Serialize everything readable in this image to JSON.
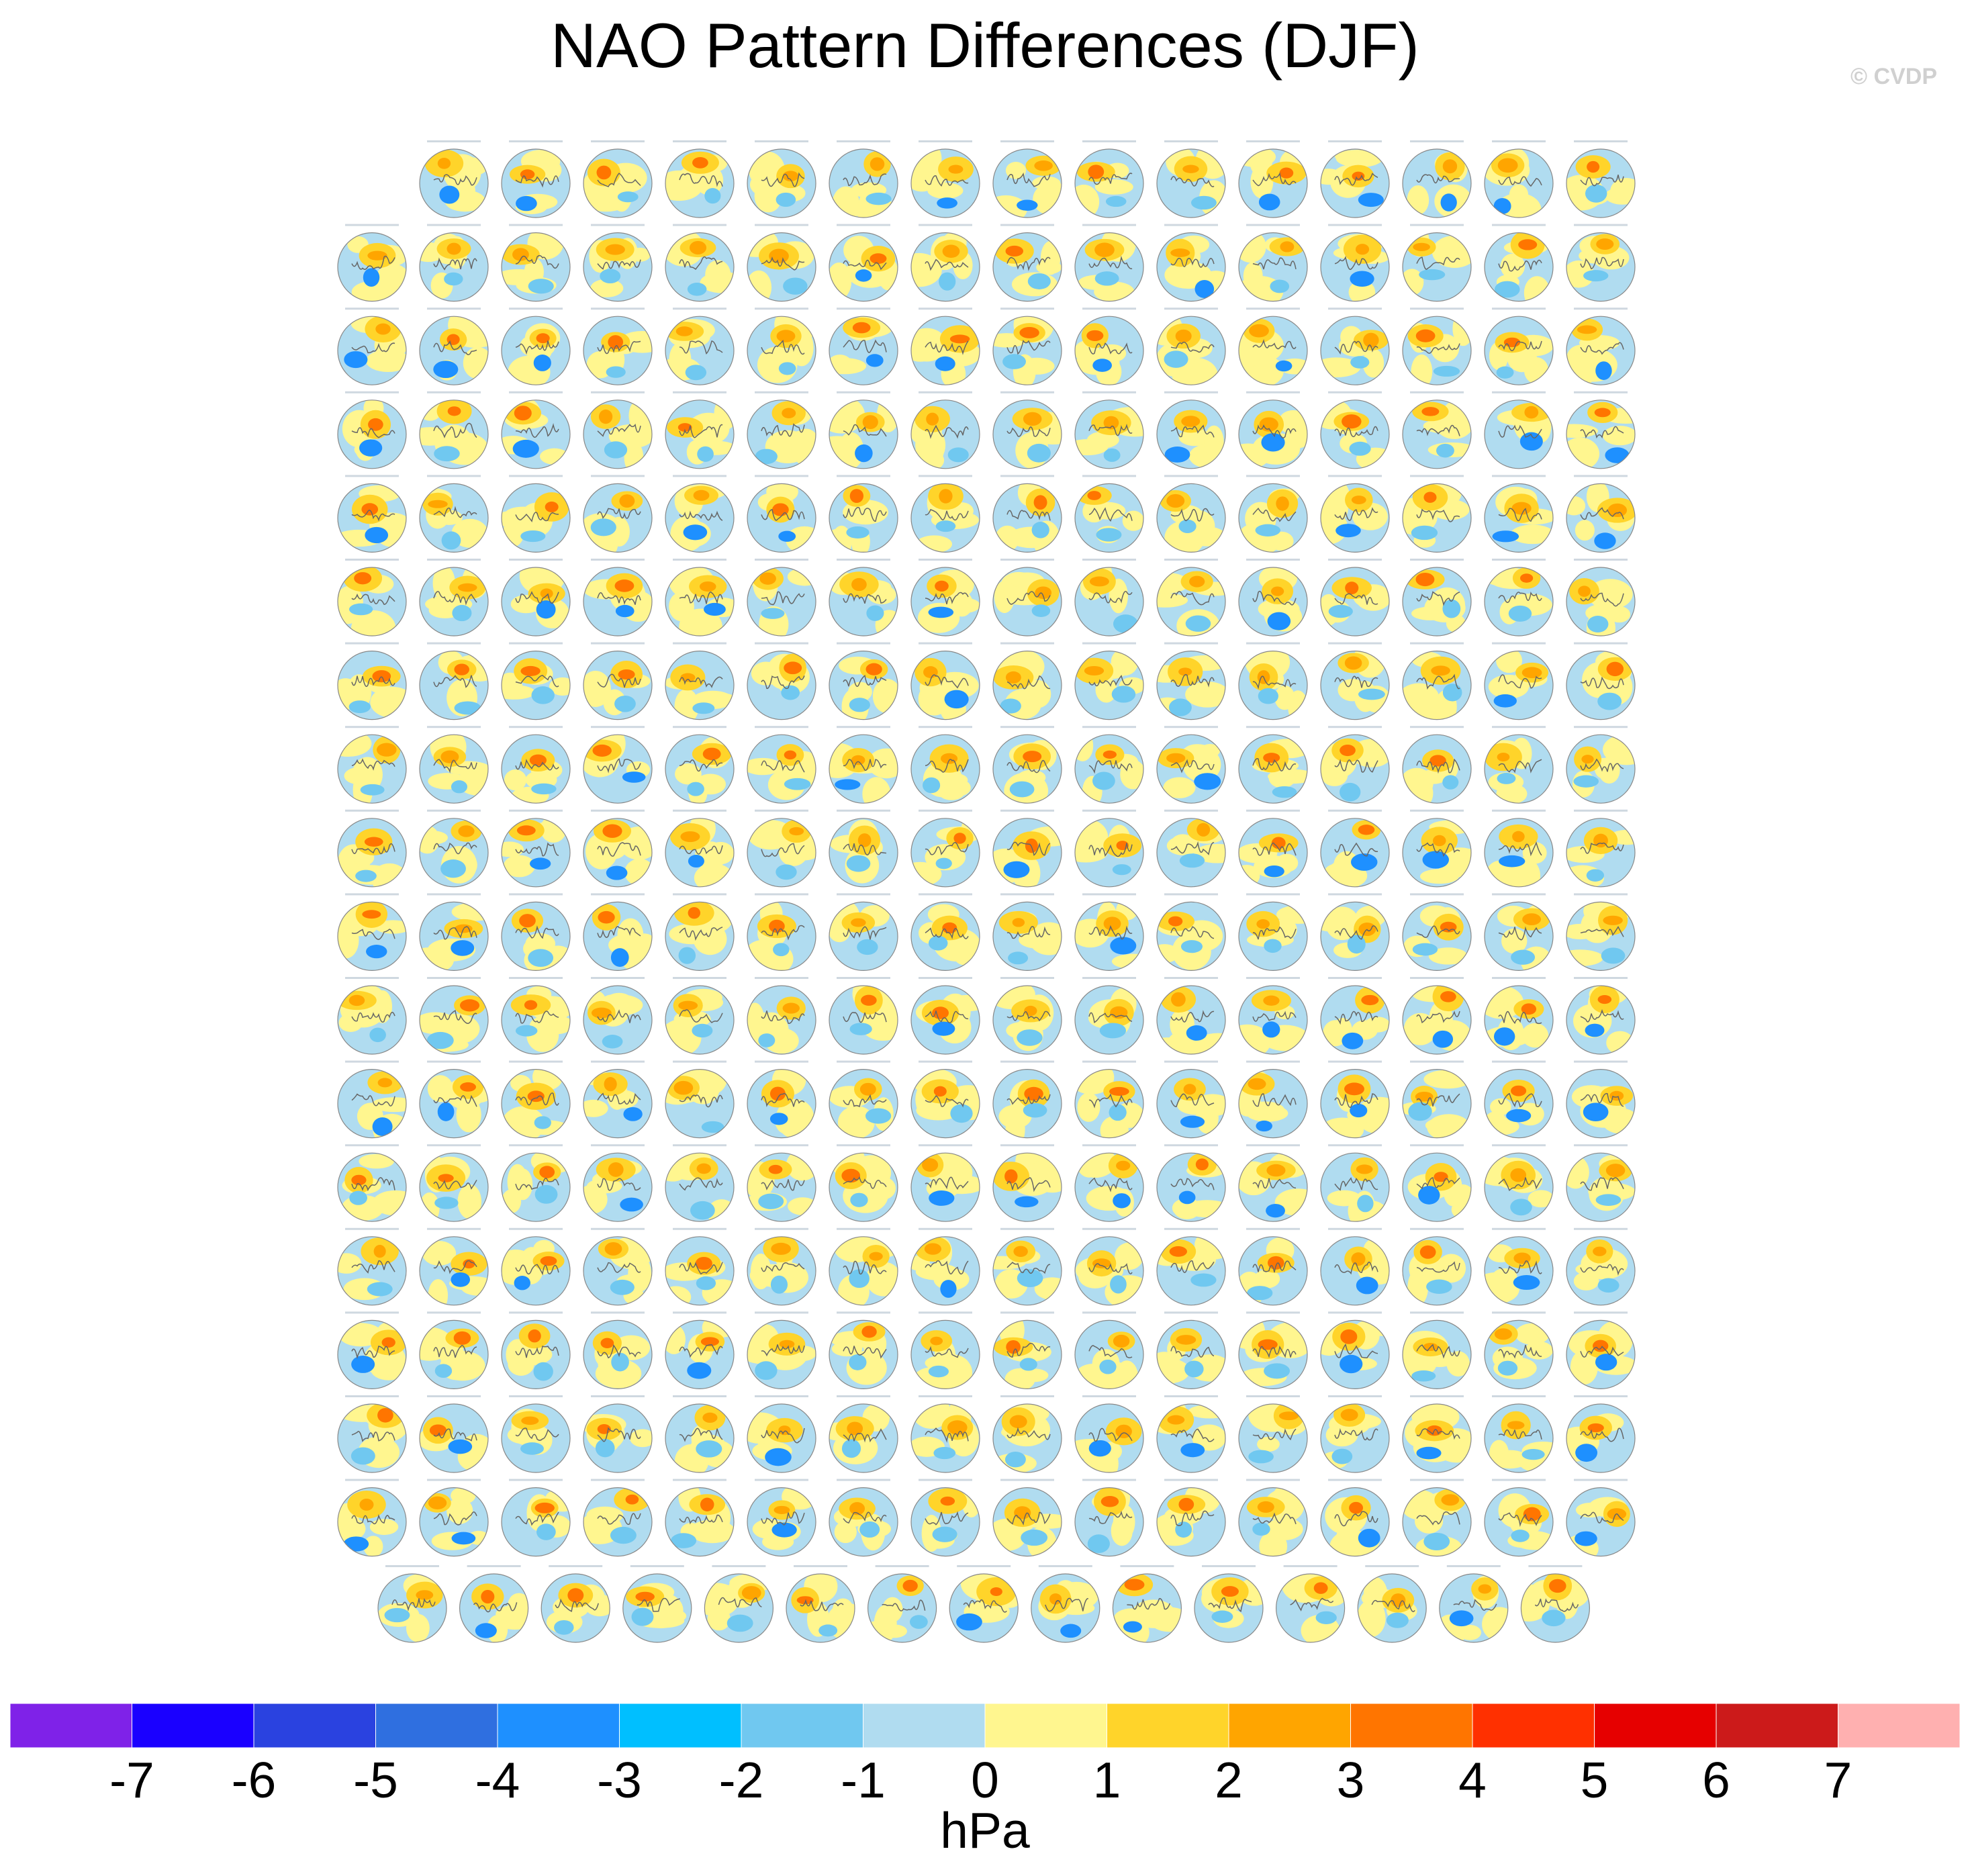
{
  "chart_data": {
    "type": "map-grid",
    "title": "NAO Pattern Differences (DJF)",
    "watermark": "© CVDP",
    "colorbar": {
      "label": "hPa",
      "levels": [
        -7,
        -6,
        -5,
        -4,
        -3,
        -2,
        -1,
        0,
        1,
        2,
        3,
        4,
        5,
        6,
        7
      ],
      "colors": [
        "#7f22e8",
        "#1a00ff",
        "#2a42e0",
        "#2f6fe0",
        "#1e90ff",
        "#00bfff",
        "#70c8f0",
        "#b0dcf0",
        "#fff68f",
        "#ffd42a",
        "#ffa500",
        "#ff7500",
        "#ff3000",
        "#e60000",
        "#cc1a1a",
        "#ffb0b0"
      ]
    }
  }
}
